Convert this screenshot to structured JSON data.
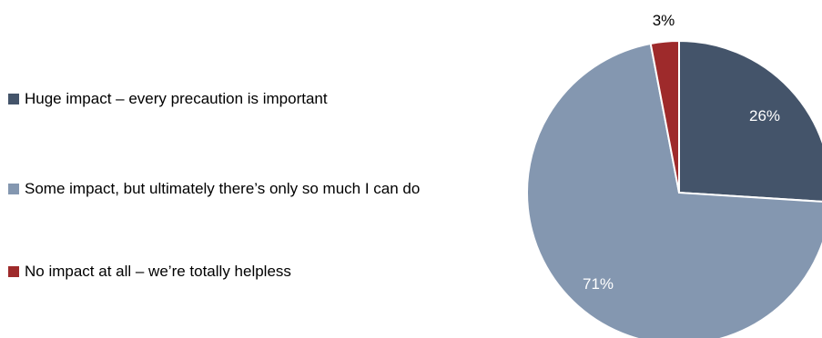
{
  "chart_data": {
    "type": "pie",
    "title": "",
    "series": [
      {
        "values": [
          26,
          71,
          3
        ],
        "labels": [
          "26%",
          "71%",
          "3%"
        ]
      }
    ],
    "categories": [
      "Huge impact – every precaution is important",
      "Some impact, but ultimately there’s only so much I can do",
      "No impact at all – we’re totally helpless"
    ],
    "colors": [
      "#44546a",
      "#8497b0",
      "#9e2a2b"
    ],
    "label_colors": [
      "#ffffff",
      "#ffffff",
      "#000000"
    ],
    "legend_position": "left"
  }
}
